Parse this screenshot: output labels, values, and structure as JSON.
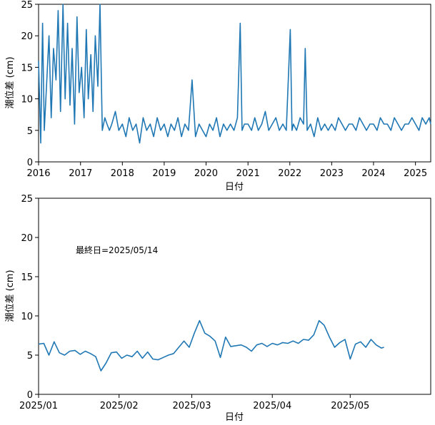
{
  "chart_data": [
    {
      "type": "line",
      "xlabel": "日付",
      "ylabel": "潮位差 (cm)",
      "ylim": [
        0,
        25
      ],
      "yticks": [
        0,
        5,
        10,
        15,
        20,
        25
      ],
      "xlim": [
        "2016-01-01",
        "2025-05-14"
      ],
      "xticks": [
        {
          "date": "2016-01-01",
          "label": "2016"
        },
        {
          "date": "2017-01-01",
          "label": "2017"
        },
        {
          "date": "2018-01-01",
          "label": "2018"
        },
        {
          "date": "2019-01-01",
          "label": "2019"
        },
        {
          "date": "2020-01-01",
          "label": "2020"
        },
        {
          "date": "2021-01-01",
          "label": "2021"
        },
        {
          "date": "2022-01-01",
          "label": "2022"
        },
        {
          "date": "2023-01-01",
          "label": "2023"
        },
        {
          "date": "2024-01-01",
          "label": "2024"
        },
        {
          "date": "2025-01-01",
          "label": "2025"
        }
      ],
      "color": "#1f77b4",
      "grid": false,
      "series": [
        {
          "x": [
            "2016-01-01",
            "2016-01-20",
            "2016-02-05",
            "2016-02-20",
            "2016-03-10",
            "2016-04-01",
            "2016-04-20",
            "2016-05-10",
            "2016-06-01",
            "2016-06-20",
            "2016-07-10",
            "2016-08-01",
            "2016-08-20",
            "2016-09-10",
            "2016-10-01",
            "2016-10-20",
            "2016-11-10",
            "2016-12-01",
            "2016-12-20",
            "2017-01-10",
            "2017-02-01",
            "2017-02-20",
            "2017-03-10",
            "2017-04-01",
            "2017-04-20",
            "2017-05-10",
            "2017-06-01",
            "2017-06-20",
            "2017-07-10",
            "2017-08-01",
            "2017-08-20",
            "2017-09-10",
            "2017-10-01",
            "2017-11-01",
            "2017-12-01",
            "2018-01-01",
            "2018-02-01",
            "2018-03-01",
            "2018-04-01",
            "2018-05-01",
            "2018-06-01",
            "2018-07-01",
            "2018-08-01",
            "2018-09-01",
            "2018-10-01",
            "2018-11-01",
            "2018-12-01",
            "2019-01-01",
            "2019-02-01",
            "2019-03-01",
            "2019-04-01",
            "2019-05-01",
            "2019-06-01",
            "2019-07-01",
            "2019-08-01",
            "2019-09-01",
            "2019-10-01",
            "2019-11-01",
            "2019-12-01",
            "2020-01-01",
            "2020-02-01",
            "2020-03-01",
            "2020-04-01",
            "2020-05-01",
            "2020-06-01",
            "2020-07-01",
            "2020-08-01",
            "2020-09-01",
            "2020-10-01",
            "2020-10-25",
            "2020-11-10",
            "2020-12-01",
            "2021-01-01",
            "2021-02-01",
            "2021-03-01",
            "2021-04-01",
            "2021-05-01",
            "2021-06-01",
            "2021-07-01",
            "2021-08-01",
            "2021-09-01",
            "2021-10-01",
            "2021-11-01",
            "2021-12-01",
            "2022-01-05",
            "2022-01-20",
            "2022-02-01",
            "2022-03-01",
            "2022-04-01",
            "2022-05-01",
            "2022-05-15",
            "2022-06-01",
            "2022-07-01",
            "2022-08-01",
            "2022-09-01",
            "2022-10-01",
            "2022-11-01",
            "2022-12-01",
            "2023-01-01",
            "2023-02-01",
            "2023-03-01",
            "2023-04-01",
            "2023-05-01",
            "2023-06-01",
            "2023-07-01",
            "2023-08-01",
            "2023-09-01",
            "2023-10-01",
            "2023-11-01",
            "2023-12-01",
            "2024-01-01",
            "2024-02-01",
            "2024-03-01",
            "2024-04-01",
            "2024-05-01",
            "2024-06-01",
            "2024-07-01",
            "2024-08-01",
            "2024-09-01",
            "2024-10-01",
            "2024-11-01",
            "2024-12-01",
            "2025-01-01",
            "2025-02-01",
            "2025-03-01",
            "2025-04-01",
            "2025-05-01",
            "2025-05-14"
          ],
          "values": [
            16,
            3,
            22,
            5,
            12,
            20,
            7,
            18,
            13,
            24,
            8,
            25,
            10,
            22,
            9,
            18,
            6,
            23,
            11,
            15,
            7,
            21,
            10,
            17,
            8,
            20,
            12,
            25,
            5,
            7,
            6,
            5,
            6,
            8,
            5,
            6,
            4,
            7,
            5,
            6,
            3,
            7,
            5,
            6,
            4,
            7,
            5,
            6,
            4,
            6,
            5,
            7,
            4,
            6,
            5,
            13,
            4,
            6,
            5,
            4,
            6,
            5,
            7,
            4,
            6,
            5,
            6,
            5,
            7,
            22,
            5,
            6,
            6,
            5,
            7,
            5,
            6,
            8,
            5,
            6,
            7,
            5,
            6,
            5,
            21,
            5,
            6,
            5,
            7,
            6,
            18,
            5,
            6,
            4,
            7,
            5,
            6,
            5,
            6,
            5,
            7,
            6,
            5,
            6,
            6,
            5,
            7,
            6,
            5,
            6,
            6,
            5,
            7,
            6,
            6,
            5,
            7,
            6,
            5,
            6,
            6,
            7,
            6,
            5,
            7,
            6,
            7,
            6
          ]
        }
      ]
    },
    {
      "type": "line",
      "xlabel": "日付",
      "ylabel": "潮位差 (cm)",
      "ylim": [
        0,
        25
      ],
      "yticks": [
        0,
        5,
        10,
        15,
        20,
        25
      ],
      "xlim": [
        "2025-01-01",
        "2025-06-01"
      ],
      "xticks": [
        {
          "date": "2025-01-01",
          "label": "2025/01"
        },
        {
          "date": "2025-02-01",
          "label": "2025/02"
        },
        {
          "date": "2025-03-01",
          "label": "2025/03"
        },
        {
          "date": "2025-04-01",
          "label": "2025/04"
        },
        {
          "date": "2025-05-01",
          "label": "2025/05"
        }
      ],
      "annotation": "最終日=2025/05/14",
      "color": "#1f77b4",
      "grid": false,
      "series": [
        {
          "x": [
            "2025-01-01",
            "2025-01-03",
            "2025-01-05",
            "2025-01-07",
            "2025-01-09",
            "2025-01-11",
            "2025-01-13",
            "2025-01-15",
            "2025-01-17",
            "2025-01-19",
            "2025-01-21",
            "2025-01-23",
            "2025-01-25",
            "2025-01-27",
            "2025-01-29",
            "2025-01-31",
            "2025-02-02",
            "2025-02-04",
            "2025-02-06",
            "2025-02-08",
            "2025-02-10",
            "2025-02-12",
            "2025-02-14",
            "2025-02-16",
            "2025-02-18",
            "2025-02-20",
            "2025-02-22",
            "2025-02-24",
            "2025-02-26",
            "2025-02-28",
            "2025-03-02",
            "2025-03-04",
            "2025-03-06",
            "2025-03-08",
            "2025-03-10",
            "2025-03-12",
            "2025-03-14",
            "2025-03-16",
            "2025-03-18",
            "2025-03-20",
            "2025-03-22",
            "2025-03-24",
            "2025-03-26",
            "2025-03-28",
            "2025-03-30",
            "2025-04-01",
            "2025-04-03",
            "2025-04-05",
            "2025-04-07",
            "2025-04-09",
            "2025-04-11",
            "2025-04-13",
            "2025-04-15",
            "2025-04-17",
            "2025-04-19",
            "2025-04-21",
            "2025-04-23",
            "2025-04-25",
            "2025-04-27",
            "2025-04-29",
            "2025-05-01",
            "2025-05-03",
            "2025-05-05",
            "2025-05-07",
            "2025-05-09",
            "2025-05-11",
            "2025-05-13",
            "2025-05-14"
          ],
          "values": [
            6.4,
            6.5,
            5.0,
            6.7,
            5.3,
            5.0,
            5.5,
            5.6,
            5.1,
            5.5,
            5.2,
            4.8,
            3.0,
            4.0,
            5.3,
            5.4,
            4.6,
            5.0,
            4.8,
            5.5,
            4.6,
            5.4,
            4.5,
            4.4,
            4.7,
            5.0,
            5.2,
            6.0,
            6.8,
            6.0,
            7.8,
            9.4,
            7.8,
            7.4,
            6.8,
            4.7,
            7.3,
            6.1,
            6.2,
            6.3,
            6.0,
            5.5,
            6.3,
            6.5,
            6.1,
            6.5,
            6.3,
            6.6,
            6.5,
            6.8,
            6.5,
            7.0,
            6.9,
            7.6,
            9.4,
            8.8,
            7.3,
            6.0,
            6.6,
            7.0,
            4.5,
            6.4,
            6.7,
            6.0,
            7.0,
            6.3,
            5.9,
            6.0
          ]
        }
      ]
    }
  ]
}
